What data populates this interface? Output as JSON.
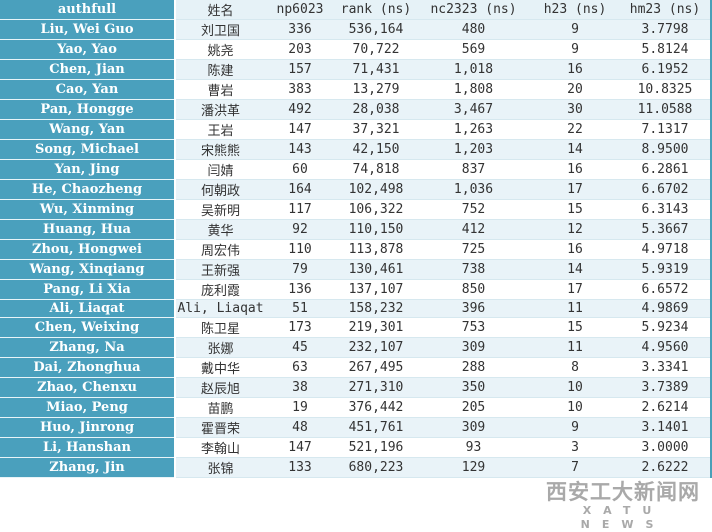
{
  "headers": [
    "authfull",
    "姓名",
    "np6023",
    "rank (ns)",
    "nc2323 (ns)",
    "h23 (ns)",
    "hm23 (ns)"
  ],
  "rows": [
    [
      "Liu, Wei Guo",
      "刘卫国",
      "336",
      "536,164",
      "480",
      "9",
      "3.7798"
    ],
    [
      "Yao, Yao",
      "姚尧",
      "203",
      "70,722",
      "569",
      "9",
      "5.8124"
    ],
    [
      "Chen, Jian",
      "陈建",
      "157",
      "71,431",
      "1,018",
      "16",
      "6.1952"
    ],
    [
      "Cao, Yan",
      "曹岩",
      "383",
      "13,279",
      "1,808",
      "20",
      "10.8325"
    ],
    [
      "Pan, Hongge",
      "潘洪革",
      "492",
      "28,038",
      "3,467",
      "30",
      "11.0588"
    ],
    [
      "Wang, Yan",
      "王岩",
      "147",
      "37,321",
      "1,263",
      "22",
      "7.1317"
    ],
    [
      "Song, Michael",
      "宋熊熊",
      "143",
      "42,150",
      "1,203",
      "14",
      "8.9500"
    ],
    [
      "Yan, Jing",
      "闫婧",
      "60",
      "74,818",
      "837",
      "16",
      "6.2861"
    ],
    [
      "He, Chaozheng",
      "何朝政",
      "164",
      "102,498",
      "1,036",
      "17",
      "6.6702"
    ],
    [
      "Wu, Xinming",
      "吴新明",
      "117",
      "106,322",
      "752",
      "15",
      "6.3143"
    ],
    [
      "Huang, Hua",
      "黄华",
      "92",
      "110,150",
      "412",
      "12",
      "5.3667"
    ],
    [
      "Zhou, Hongwei",
      "周宏伟",
      "110",
      "113,878",
      "725",
      "16",
      "4.9718"
    ],
    [
      "Wang, Xinqiang",
      "王新强",
      "79",
      "130,461",
      "738",
      "14",
      "5.9319"
    ],
    [
      "Pang, Li Xia",
      "庞利霞",
      "136",
      "137,107",
      "850",
      "17",
      "6.6572"
    ],
    [
      "Ali, Liaqat",
      "Ali, Liaqat",
      "51",
      "158,232",
      "396",
      "11",
      "4.9869"
    ],
    [
      "Chen, Weixing",
      "陈卫星",
      "173",
      "219,301",
      "753",
      "15",
      "5.9234"
    ],
    [
      "Zhang, Na",
      "张娜",
      "45",
      "232,107",
      "309",
      "11",
      "4.9560"
    ],
    [
      "Dai, Zhonghua",
      "戴中华",
      "63",
      "267,495",
      "288",
      "8",
      "3.3341"
    ],
    [
      "Zhao, Chenxu",
      "赵辰旭",
      "38",
      "271,310",
      "350",
      "10",
      "3.7389"
    ],
    [
      "Miao, Peng",
      "苗鹏",
      "19",
      "376,442",
      "205",
      "10",
      "2.6214"
    ],
    [
      "Huo, Jinrong",
      "霍晋荣",
      "48",
      "451,761",
      "309",
      "9",
      "3.1401"
    ],
    [
      "Li, Hanshan",
      "李翰山",
      "147",
      "521,196",
      "93",
      "3",
      "3.0000"
    ],
    [
      "Zhang, Jin",
      "张锦",
      "133",
      "680,223",
      "129",
      "7",
      "2.6222"
    ]
  ],
  "watermark": {
    "line1": "西安工大新闻网",
    "line2": "XATU NEWS"
  },
  "colors": {
    "name_column": "#4aa0bd",
    "alt_row": "#e9f3f8"
  }
}
